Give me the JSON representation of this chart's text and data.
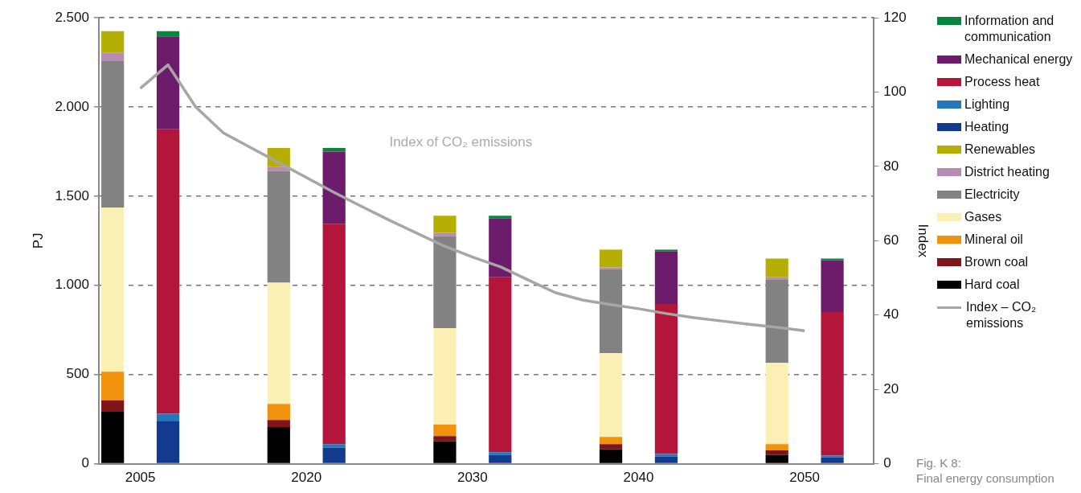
{
  "chart_data": {
    "type": "bar",
    "stacked": true,
    "ylabel": "PJ",
    "y2label": "Index",
    "categories": [
      null,
      "2005",
      null,
      null,
      null,
      null,
      null,
      "2020",
      null,
      null,
      null,
      null,
      null,
      "2030",
      null,
      null,
      null,
      null,
      null,
      "2040",
      null,
      null,
      null,
      null,
      null,
      "2050",
      null,
      null
    ],
    "ylim": [
      0,
      2500
    ],
    "yticks": [
      0,
      {
        "value": 500,
        "label": "500"
      },
      {
        "value": 1000,
        "label": "1.000"
      },
      {
        "value": 1500,
        "label": "1.500"
      },
      {
        "value": 2000,
        "label": "2.000"
      },
      {
        "value": 2500,
        "label": "2.500"
      }
    ],
    "y2lim": [
      0,
      120
    ],
    "y2ticks": [
      0,
      20,
      40,
      60,
      80,
      100,
      120
    ],
    "grid": "y",
    "legend": "right",
    "marker": "none",
    "annotations": [
      "Index of CO₂ emissions",
      "Fig. K 8:",
      "Final energy consumption"
    ],
    "series": [
      {
        "name": "Hard coal",
        "color": "#000000",
        "values": [
          295,
          null,
          null,
          null,
          null,
          null,
          205,
          null,
          null,
          null,
          null,
          null,
          125,
          null,
          null,
          null,
          null,
          null,
          80,
          null,
          null,
          null,
          null,
          null,
          50,
          null,
          null,
          null
        ]
      },
      {
        "name": "Brown coal",
        "color": "#7f1519",
        "values": [
          60,
          null,
          null,
          null,
          null,
          null,
          40,
          null,
          null,
          null,
          null,
          null,
          30,
          null,
          null,
          null,
          null,
          null,
          30,
          null,
          null,
          null,
          null,
          null,
          25,
          null,
          null,
          null
        ]
      },
      {
        "name": "Mineral oil",
        "color": "#f0920c",
        "values": [
          160,
          null,
          null,
          null,
          null,
          null,
          90,
          null,
          null,
          null,
          null,
          null,
          65,
          null,
          null,
          null,
          null,
          null,
          40,
          null,
          null,
          null,
          null,
          null,
          35,
          null,
          null,
          null
        ]
      },
      {
        "name": "Gases",
        "color": "#fbf0b4",
        "values": [
          920,
          null,
          null,
          null,
          null,
          null,
          680,
          null,
          null,
          null,
          null,
          null,
          540,
          null,
          null,
          null,
          null,
          null,
          470,
          null,
          null,
          null,
          null,
          null,
          455,
          null,
          null,
          null
        ]
      },
      {
        "name": "Electricity",
        "color": "#828282",
        "values": [
          825,
          null,
          null,
          null,
          null,
          null,
          625,
          null,
          null,
          null,
          null,
          null,
          515,
          null,
          null,
          null,
          null,
          null,
          470,
          null,
          null,
          null,
          null,
          null,
          465,
          null,
          null,
          null
        ]
      },
      {
        "name": "District heating",
        "color": "#b68cb3",
        "values": [
          45,
          null,
          null,
          null,
          null,
          null,
          25,
          null,
          null,
          null,
          null,
          null,
          20,
          null,
          null,
          null,
          null,
          null,
          10,
          null,
          null,
          null,
          null,
          null,
          15,
          null,
          null,
          null
        ]
      },
      {
        "name": "Renewables",
        "color": "#b5ae04",
        "values": [
          120,
          null,
          null,
          null,
          null,
          null,
          105,
          null,
          null,
          null,
          null,
          null,
          95,
          null,
          null,
          null,
          null,
          null,
          100,
          null,
          null,
          null,
          null,
          null,
          105,
          null,
          null,
          null
        ]
      },
      {
        "name": "Heating",
        "color": "#123a8f",
        "values": [
          null,
          null,
          240,
          null,
          null,
          null,
          null,
          null,
          90,
          null,
          null,
          null,
          null,
          null,
          50,
          null,
          null,
          null,
          null,
          null,
          40,
          null,
          null,
          null,
          null,
          null,
          35,
          null
        ]
      },
      {
        "name": "Lighting",
        "color": "#2576ba",
        "values": [
          null,
          null,
          40,
          null,
          null,
          null,
          null,
          null,
          20,
          null,
          null,
          null,
          null,
          null,
          15,
          null,
          null,
          null,
          null,
          null,
          15,
          null,
          null,
          null,
          null,
          null,
          10,
          null
        ]
      },
      {
        "name": "Process heat",
        "color": "#b3163a",
        "values": [
          null,
          null,
          1595,
          null,
          null,
          null,
          null,
          null,
          1235,
          null,
          null,
          null,
          null,
          null,
          980,
          null,
          null,
          null,
          null,
          null,
          840,
          null,
          null,
          null,
          null,
          null,
          805,
          null
        ]
      },
      {
        "name": "Mechanical energy",
        "color": "#6d1c6b",
        "values": [
          null,
          null,
          520,
          null,
          null,
          null,
          null,
          null,
          405,
          null,
          null,
          null,
          null,
          null,
          330,
          null,
          null,
          null,
          null,
          null,
          295,
          null,
          null,
          null,
          null,
          null,
          290,
          null
        ]
      },
      {
        "name": "Information and communication",
        "color": "#078440",
        "values": [
          null,
          null,
          30,
          null,
          null,
          null,
          null,
          null,
          20,
          null,
          null,
          null,
          null,
          null,
          15,
          null,
          null,
          null,
          null,
          null,
          10,
          null,
          null,
          null,
          null,
          null,
          10,
          null
        ]
      },
      {
        "name": "Index – CO₂ emissions",
        "type": "line",
        "axis": "y2",
        "color": "#a6a6a6",
        "values": [
          null,
          101,
          107.3,
          96,
          89,
          85,
          81,
          77,
          73,
          69.2,
          65.5,
          62,
          58.5,
          55.6,
          53,
          49.5,
          46,
          44,
          42.8,
          41.7,
          40.4,
          39.3,
          38.4,
          37.5,
          36.7,
          35.8,
          null,
          null
        ]
      }
    ]
  }
}
